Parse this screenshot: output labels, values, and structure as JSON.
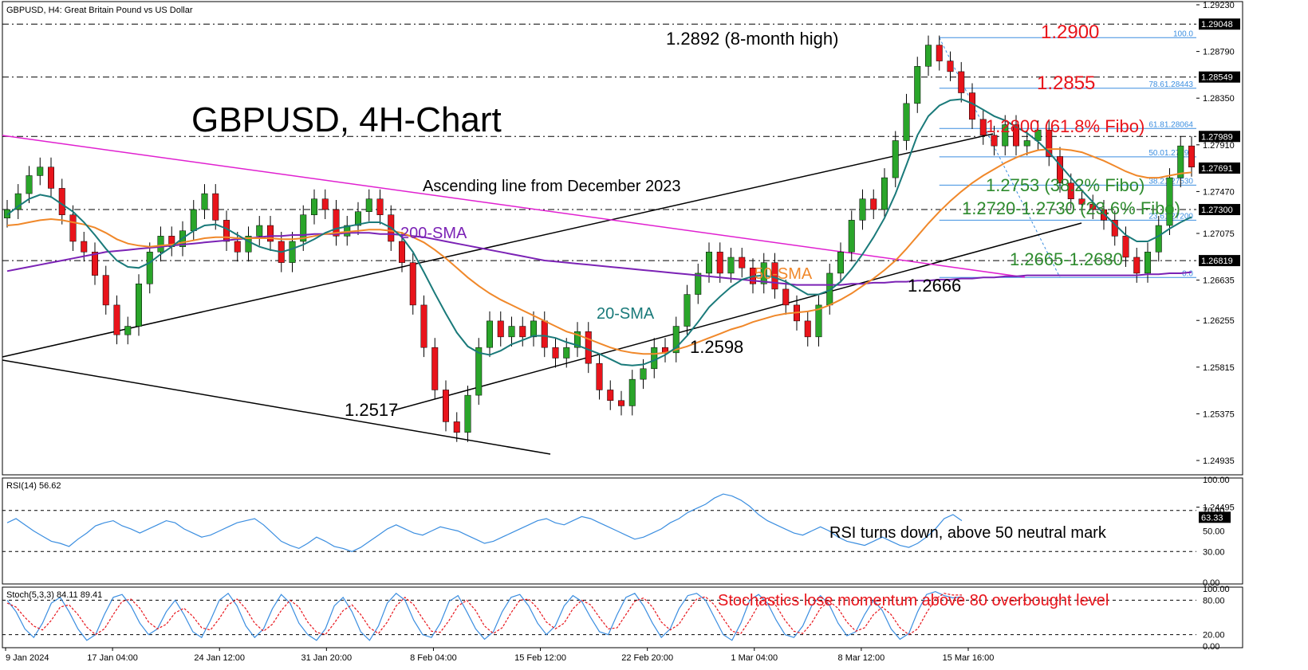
{
  "chart_data": {
    "type": "candlestick",
    "symbol_header": "GBPUSD, H4:  Great Britain Pound vs US Dollar",
    "title": "GBPUSD, 4H-Chart",
    "price_axis_ticks": [
      "1.29230",
      "1.28790",
      "1.28350",
      "1.27910",
      "1.27470",
      "1.27075",
      "1.26635",
      "1.26255",
      "1.25815",
      "1.25375",
      "1.24935",
      "1.24495"
    ],
    "price_range": [
      1.248,
      1.2926
    ],
    "price_tags": [
      {
        "label": "1.29048",
        "value": 1.29048,
        "bg": "#000000",
        "fg": "#ffffff"
      },
      {
        "label": "1.28549",
        "value": 1.28549,
        "bg": "#000000",
        "fg": "#ffffff"
      },
      {
        "label": "1.27989",
        "value": 1.27989,
        "bg": "#000000",
        "fg": "#ffffff"
      },
      {
        "label": "1.27691",
        "value": 1.27691,
        "bg": "#000000",
        "fg": "#ffffff"
      },
      {
        "label": "1.27300",
        "value": 1.273,
        "bg": "#000000",
        "fg": "#ffffff"
      },
      {
        "label": "1.26819",
        "value": 1.26819,
        "bg": "#000000",
        "fg": "#ffffff"
      }
    ],
    "x_ticks": [
      "9 Jan 2024",
      "17 Jan 04:00",
      "24 Jan 12:00",
      "31 Jan 20:00",
      "8 Feb 04:00",
      "15 Feb 12:00",
      "22 Feb 20:00",
      "1 Mar 04:00",
      "8 Mar 12:00",
      "15 Mar 16:00"
    ],
    "horizontal_levels": [
      1.29048,
      1.28549,
      1.27989,
      1.273,
      1.26819
    ],
    "fibonacci": {
      "high": 1.2892,
      "low": 1.2666,
      "levels": [
        {
          "label": "100.0",
          "value": 1.2892
        },
        {
          "label": "78.61.28443",
          "value": 1.28443
        },
        {
          "label": "61.81.28064",
          "value": 1.28064
        },
        {
          "label": "50.01.27797",
          "value": 1.27797
        },
        {
          "label": "38.21.27530",
          "value": 1.2753
        },
        {
          "label": "23.61.27200",
          "value": 1.272
        },
        {
          "label": "0.0",
          "value": 1.2666
        }
      ]
    },
    "annotations": {
      "high_label": "1.2892 (8-month high)",
      "r1": "1.2900",
      "r2": "1.2855",
      "r3": "1.2800 (61.8% Fibo)",
      "s1": "1.2753 (38.2% Fibo)",
      "s2": "1.2720-1.2730 (23.6% Fibo)",
      "s3": "1.2665-1.2680",
      "low1": "1.2666",
      "low2": "1.2598",
      "low3": "1.2517",
      "asc_line": "Ascending line from December 2023",
      "sma200": "200-SMA",
      "sma50": "50-SMA",
      "sma20": "20-SMA"
    },
    "series_prices": {
      "closes": [
        1.273,
        1.2745,
        1.2762,
        1.277,
        1.275,
        1.2725,
        1.27,
        1.269,
        1.2668,
        1.264,
        1.2612,
        1.262,
        1.266,
        1.269,
        1.2705,
        1.2695,
        1.271,
        1.273,
        1.2745,
        1.272,
        1.27,
        1.269,
        1.2705,
        1.2715,
        1.27,
        1.268,
        1.27,
        1.2725,
        1.274,
        1.273,
        1.2705,
        1.2715,
        1.2728,
        1.274,
        1.2725,
        1.27,
        1.268,
        1.264,
        1.26,
        1.256,
        1.253,
        1.252,
        1.2555,
        1.26,
        1.2625,
        1.261,
        1.262,
        1.261,
        1.2625,
        1.26,
        1.259,
        1.26,
        1.2615,
        1.2585,
        1.256,
        1.255,
        1.2545,
        1.257,
        1.258,
        1.26,
        1.2595,
        1.262,
        1.265,
        1.267,
        1.269,
        1.267,
        1.2685,
        1.2675,
        1.266,
        1.268,
        1.2655,
        1.264,
        1.2625,
        1.261,
        1.264,
        1.267,
        1.269,
        1.272,
        1.274,
        1.273,
        1.276,
        1.2795,
        1.283,
        1.2865,
        1.2885,
        1.287,
        1.286,
        1.284,
        1.2815,
        1.28,
        1.279,
        1.281,
        1.279,
        1.2795,
        1.2805,
        1.278,
        1.2755,
        1.274,
        1.2735,
        1.273,
        1.272,
        1.2705,
        1.2685,
        1.267,
        1.269,
        1.2715,
        1.276,
        1.279,
        1.277
      ],
      "sma20": [
        1.2725,
        1.2733,
        1.274,
        1.2744,
        1.2742,
        1.2735,
        1.2728,
        1.2718,
        1.2706,
        1.2693,
        1.2682,
        1.2676,
        1.2675,
        1.268,
        1.2688,
        1.2695,
        1.2703,
        1.271,
        1.2715,
        1.2716,
        1.2712,
        1.2706,
        1.27,
        1.2695,
        1.2692,
        1.269,
        1.2693,
        1.2697,
        1.2702,
        1.2708,
        1.2712,
        1.2714,
        1.2716,
        1.2718,
        1.2718,
        1.2713,
        1.2704,
        1.269,
        1.2671,
        1.2651,
        1.2632,
        1.2614,
        1.2601,
        1.2595,
        1.2593,
        1.2597,
        1.2603,
        1.2607,
        1.2611,
        1.2611,
        1.2609,
        1.2605,
        1.2602,
        1.2598,
        1.2594,
        1.2589,
        1.2584,
        1.2583,
        1.2584,
        1.2588,
        1.2593,
        1.26,
        1.2611,
        1.2624,
        1.2638,
        1.2648,
        1.2657,
        1.2664,
        1.2667,
        1.2668,
        1.2666,
        1.2662,
        1.2656,
        1.265,
        1.265,
        1.2654,
        1.2662,
        1.2674,
        1.2688,
        1.2704,
        1.2722,
        1.2745,
        1.2772,
        1.28,
        1.2818,
        1.2828,
        1.2833,
        1.2834,
        1.283,
        1.2824,
        1.2818,
        1.2814,
        1.2808,
        1.2802,
        1.2794,
        1.2784,
        1.2772,
        1.276,
        1.2748,
        1.2737,
        1.2726,
        1.2716,
        1.2706,
        1.27,
        1.27,
        1.2705,
        1.2712,
        1.2718,
        1.2723
      ],
      "sma50": [
        1.2715,
        1.2716,
        1.2718,
        1.272,
        1.2721,
        1.272,
        1.2718,
        1.2716,
        1.2713,
        1.2708,
        1.2702,
        1.2698,
        1.2696,
        1.2695,
        1.2696,
        1.2697,
        1.2699,
        1.2701,
        1.2703,
        1.2704,
        1.2704,
        1.2703,
        1.2703,
        1.2703,
        1.2703,
        1.2702,
        1.2702,
        1.2703,
        1.2705,
        1.2707,
        1.2708,
        1.2709,
        1.271,
        1.2711,
        1.2711,
        1.271,
        1.2708,
        1.2704,
        1.2699,
        1.2692,
        1.2684,
        1.2675,
        1.2666,
        1.2658,
        1.2651,
        1.2645,
        1.264,
        1.2635,
        1.263,
        1.2625,
        1.262,
        1.2615,
        1.2612,
        1.2608,
        1.2604,
        1.26,
        1.2597,
        1.2595,
        1.2594,
        1.2594,
        1.2595,
        1.2598,
        1.2601,
        1.2605,
        1.2609,
        1.2613,
        1.2617,
        1.262,
        1.2624,
        1.2627,
        1.263,
        1.2632,
        1.2633,
        1.2634,
        1.2636,
        1.264,
        1.2645,
        1.2651,
        1.2658,
        1.2665,
        1.2673,
        1.2682,
        1.2693,
        1.2705,
        1.2717,
        1.2728,
        1.2738,
        1.2747,
        1.2755,
        1.2762,
        1.2768,
        1.2774,
        1.2779,
        1.2783,
        1.2786,
        1.2787,
        1.2787,
        1.2786,
        1.2784,
        1.278,
        1.2776,
        1.2771,
        1.2766,
        1.2762,
        1.276,
        1.276,
        1.2762,
        1.2764,
        1.2765
      ],
      "sma200": [
        1.2672,
        1.2674,
        1.2676,
        1.2678,
        1.268,
        1.2682,
        1.2684,
        1.2686,
        1.2688,
        1.269,
        1.2691,
        1.2692,
        1.2693,
        1.2694,
        1.2695,
        1.2696,
        1.2697,
        1.2698,
        1.2699,
        1.27,
        1.2701,
        1.2702,
        1.2703,
        1.2704,
        1.2705,
        1.2705,
        1.2706,
        1.2706,
        1.2707,
        1.2707,
        1.2707,
        1.2708,
        1.2708,
        1.2708,
        1.2707,
        1.2707,
        1.2706,
        1.2705,
        1.2704,
        1.2702,
        1.27,
        1.2698,
        1.2696,
        1.2694,
        1.2692,
        1.269,
        1.2688,
        1.2686,
        1.2684,
        1.2682,
        1.2681,
        1.268,
        1.2679,
        1.2678,
        1.2677,
        1.2676,
        1.2675,
        1.2674,
        1.2673,
        1.2672,
        1.2671,
        1.267,
        1.2669,
        1.2668,
        1.2667,
        1.2666,
        1.2665,
        1.2664,
        1.2663,
        1.2662,
        1.2661,
        1.266,
        1.2659,
        1.2659,
        1.2659,
        1.2659,
        1.2659,
        1.266,
        1.266,
        1.2661,
        1.2661,
        1.2662,
        1.2662,
        1.2663,
        1.2663,
        1.2664,
        1.2664,
        1.2665,
        1.2665,
        1.2666,
        1.2666,
        1.2667,
        1.2667,
        1.2668,
        1.2668,
        1.2668,
        1.2668,
        1.2668,
        1.2668,
        1.2668,
        1.2668,
        1.2668,
        1.2668,
        1.2668,
        1.2669,
        1.2669,
        1.267,
        1.267,
        1.2671
      ]
    },
    "rsi": {
      "label": "RSI(14) 56.62",
      "axis_ticks": [
        "100.00",
        "70.00",
        "50.00",
        "30.00",
        "0.00"
      ],
      "current_tag": "63.33",
      "levels": [
        70,
        30
      ],
      "annotation": "RSI turns down, above 50 neutral mark",
      "values": [
        58,
        62,
        56,
        50,
        45,
        40,
        38,
        35,
        42,
        48,
        55,
        58,
        60,
        55,
        52,
        48,
        52,
        56,
        60,
        58,
        52,
        48,
        44,
        46,
        50,
        54,
        58,
        60,
        62,
        56,
        48,
        40,
        36,
        33,
        38,
        44,
        40,
        35,
        33,
        30,
        34,
        40,
        46,
        52,
        56,
        52,
        48,
        46,
        50,
        54,
        52,
        50,
        46,
        42,
        38,
        40,
        44,
        48,
        52,
        56,
        60,
        62,
        58,
        56,
        60,
        64,
        62,
        58,
        54,
        50,
        46,
        42,
        44,
        48,
        52,
        58,
        62,
        68,
        72,
        76,
        82,
        86,
        84,
        80,
        74,
        66,
        60,
        56,
        52,
        48,
        46,
        50,
        54,
        50,
        44,
        40,
        38,
        36,
        40,
        44,
        40,
        36,
        34,
        38,
        44,
        52,
        62,
        66,
        60
      ]
    },
    "stoch": {
      "label": "Stoch(5,3,3) 84.11 89.41",
      "axis_ticks": [
        "100.00",
        "80.00",
        "20.00",
        "0.00"
      ],
      "levels": [
        80,
        20
      ],
      "annotation": "Stochastics lose momentum above 80 overbought level",
      "k": [
        80,
        60,
        30,
        15,
        40,
        75,
        85,
        60,
        30,
        10,
        20,
        55,
        85,
        90,
        70,
        40,
        20,
        30,
        60,
        80,
        55,
        25,
        15,
        45,
        80,
        92,
        70,
        35,
        15,
        30,
        65,
        90,
        75,
        40,
        20,
        10,
        30,
        70,
        85,
        60,
        25,
        10,
        35,
        75,
        92,
        80,
        45,
        20,
        15,
        40,
        78,
        88,
        60,
        30,
        12,
        25,
        60,
        85,
        90,
        70,
        40,
        20,
        35,
        70,
        88,
        78,
        50,
        25,
        20,
        55,
        85,
        92,
        70,
        40,
        15,
        30,
        65,
        88,
        92,
        80,
        50,
        20,
        10,
        40,
        80,
        90,
        75,
        45,
        20,
        15,
        35,
        70,
        88,
        72,
        40,
        18,
        25,
        55,
        80,
        62,
        30,
        12,
        22,
        60,
        90,
        95,
        88,
        84,
        86
      ],
      "d": [
        75,
        68,
        50,
        35,
        28,
        45,
        68,
        72,
        55,
        33,
        20,
        30,
        55,
        78,
        82,
        66,
        42,
        30,
        38,
        58,
        66,
        52,
        32,
        28,
        48,
        72,
        82,
        65,
        40,
        26,
        38,
        62,
        80,
        68,
        42,
        24,
        20,
        40,
        62,
        72,
        55,
        32,
        22,
        42,
        70,
        85,
        72,
        48,
        26,
        24,
        45,
        70,
        80,
        62,
        35,
        22,
        32,
        58,
        80,
        82,
        66,
        42,
        30,
        40,
        65,
        80,
        72,
        50,
        30,
        32,
        55,
        78,
        84,
        68,
        42,
        28,
        38,
        62,
        82,
        86,
        72,
        48,
        26,
        22,
        45,
        72,
        84,
        70,
        45,
        26,
        22,
        40,
        66,
        78,
        66,
        42,
        26,
        32,
        55,
        68,
        55,
        32,
        20,
        30,
        58,
        82,
        92,
        89,
        89
      ]
    }
  }
}
